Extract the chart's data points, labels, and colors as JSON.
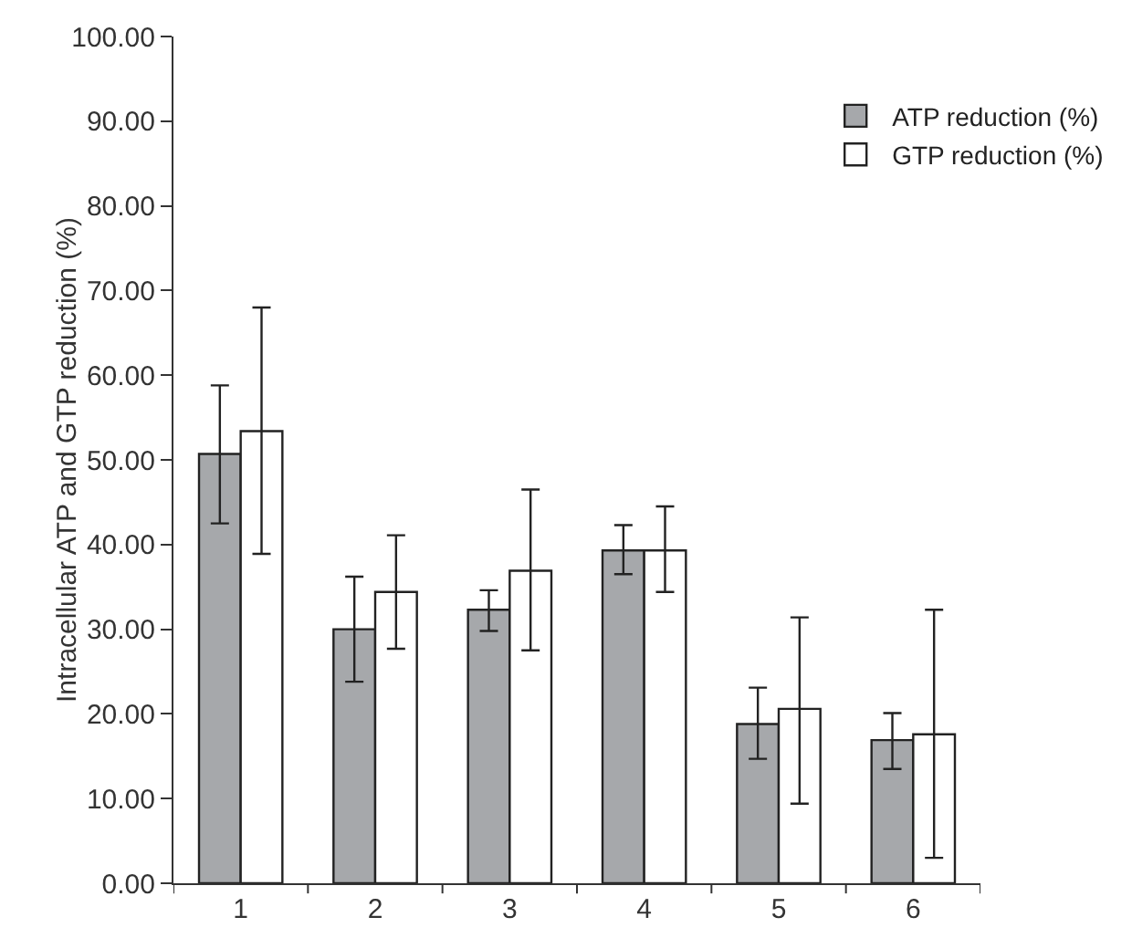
{
  "chart_data": {
    "type": "bar",
    "ylabel": "Intracellular ATP and GTP reduction (%)",
    "categories": [
      "1",
      "2",
      "3",
      "4",
      "5",
      "6"
    ],
    "series": [
      {
        "name": "ATP reduction (%)",
        "color": "#a6a8ab",
        "values": [
          50.7,
          30.0,
          32.3,
          39.3,
          18.8,
          16.9
        ],
        "errors": [
          [
            42.5,
            58.8
          ],
          [
            23.8,
            36.2
          ],
          [
            29.8,
            34.6
          ],
          [
            36.5,
            42.3
          ],
          [
            14.7,
            23.1
          ],
          [
            13.5,
            20.1
          ]
        ]
      },
      {
        "name": "GTP reduction (%)",
        "color": "#ffffff",
        "values": [
          53.4,
          34.4,
          36.9,
          39.3,
          20.6,
          17.6
        ],
        "errors": [
          [
            38.9,
            68.0
          ],
          [
            27.7,
            41.1
          ],
          [
            27.5,
            46.5
          ],
          [
            34.4,
            44.5
          ],
          [
            9.4,
            31.4
          ],
          [
            3.0,
            32.3
          ]
        ]
      }
    ],
    "ylim": [
      0,
      100
    ],
    "yticks": [
      {
        "value": 0,
        "label": "0.00"
      },
      {
        "value": 10,
        "label": "10.00"
      },
      {
        "value": 20,
        "label": "20.00"
      },
      {
        "value": 30,
        "label": "30.00"
      },
      {
        "value": 40,
        "label": "40.00"
      },
      {
        "value": 50,
        "label": "50.00"
      },
      {
        "value": 60,
        "label": "60.00"
      },
      {
        "value": 70,
        "label": "70.00"
      },
      {
        "value": 80,
        "label": "80.00"
      },
      {
        "value": 90,
        "label": "90.00"
      },
      {
        "value": 100,
        "label": "100.00"
      }
    ],
    "grid": false,
    "legend": "top right"
  }
}
